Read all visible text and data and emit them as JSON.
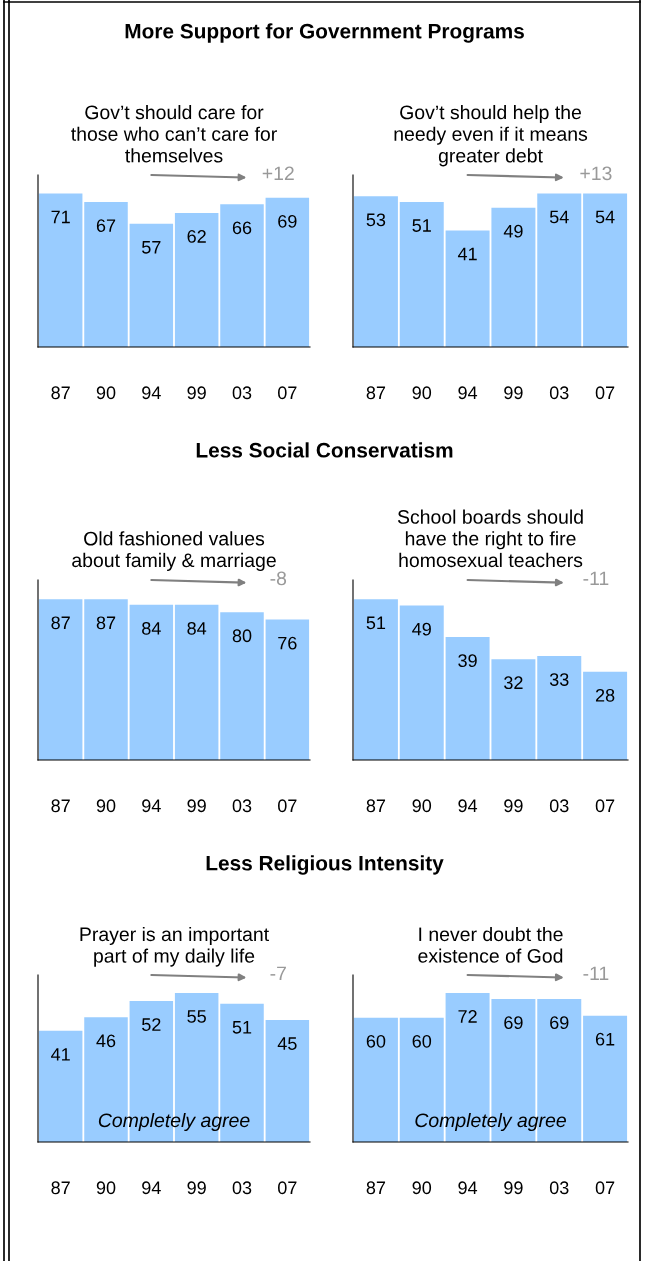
{
  "chart_data": [
    {
      "type": "bar",
      "title": "More Support for Government Programs",
      "subtitle": "Gov’t should care for\nthose who can’t care for\nthemselves",
      "categories": [
        "87",
        "90",
        "94",
        "99",
        "03",
        "07"
      ],
      "values": [
        71,
        67,
        57,
        62,
        66,
        69
      ],
      "color": "#99ccff",
      "data_labels": true,
      "annotations": [
        "+12"
      ]
    },
    {
      "type": "bar",
      "subtitle": "Gov’t should help the\nneedy even if it means\ngreater debt",
      "categories": [
        "87",
        "90",
        "94",
        "99",
        "03",
        "07"
      ],
      "values": [
        53,
        51,
        41,
        49,
        54,
        54
      ],
      "color": "#99ccff",
      "data_labels": true,
      "annotations": [
        "+13"
      ]
    },
    {
      "type": "bar",
      "title": "Less Social Conservatism",
      "subtitle": "Old fashioned values\nabout family & marriage",
      "categories": [
        "87",
        "90",
        "94",
        "99",
        "03",
        "07"
      ],
      "values": [
        87,
        87,
        84,
        84,
        80,
        76
      ],
      "color": "#99ccff",
      "data_labels": true,
      "annotations": [
        "-8"
      ]
    },
    {
      "type": "bar",
      "subtitle": "School boards should\nhave the right to fire\nhomosexual teachers",
      "categories": [
        "87",
        "90",
        "94",
        "99",
        "03",
        "07"
      ],
      "values": [
        51,
        49,
        39,
        32,
        33,
        28
      ],
      "color": "#99ccff",
      "data_labels": true,
      "annotations": [
        "-11"
      ]
    },
    {
      "type": "bar",
      "title": "Less Religious Intensity",
      "subtitle": "Prayer is an important\npart of my daily life",
      "categories": [
        "87",
        "90",
        "94",
        "99",
        "03",
        "07"
      ],
      "values": [
        41,
        46,
        52,
        55,
        51,
        45
      ],
      "color": "#99ccff",
      "data_labels": true,
      "annotations": [
        "-7",
        "Completely agree"
      ]
    },
    {
      "type": "bar",
      "subtitle": "I never doubt the\nexistence of God",
      "categories": [
        "87",
        "90",
        "94",
        "99",
        "03",
        "07"
      ],
      "values": [
        60,
        60,
        72,
        69,
        69,
        61
      ],
      "color": "#99ccff",
      "data_labels": true,
      "annotations": [
        "-11",
        "Completely agree"
      ]
    }
  ]
}
